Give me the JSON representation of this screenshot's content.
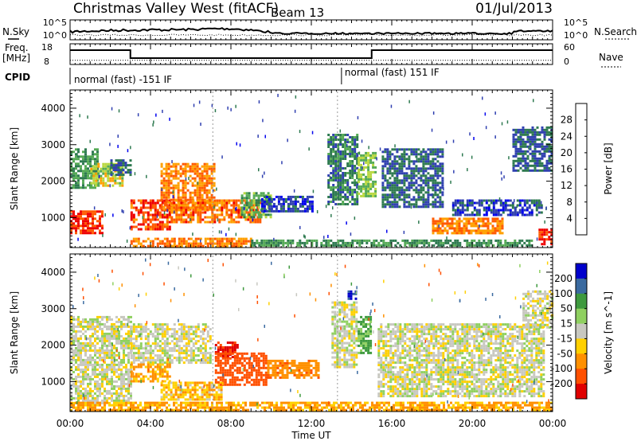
{
  "header": {
    "station": "Christmas Valley West (fitACF)",
    "beam": "Beam 13",
    "date": "01/Jul/2013"
  },
  "side_labels": {
    "nsky": "N.Sky",
    "nsearch": "N.Search",
    "freq_line1": "Freq.",
    "freq_line2": "[MHz]",
    "nave": "Nave",
    "cpid": "CPID"
  },
  "cpid_modes": [
    {
      "label": "normal (fast) -151 IF",
      "start_h": 0
    },
    {
      "label": "normal (fast) 151 IF",
      "start_h": 13.5
    }
  ],
  "noise_panel": {
    "left_ticks": [
      "10^5",
      "10^0"
    ],
    "right_ticks": [
      "10^5",
      "10^0"
    ]
  },
  "freq_panel": {
    "left_ticks": [
      "18",
      "8"
    ],
    "right_ticks": [
      "60",
      "0"
    ],
    "freq_steps": [
      {
        "start_h": 0,
        "end_h": 3.0,
        "mhz": 15
      },
      {
        "start_h": 3.0,
        "end_h": 15.0,
        "mhz": 10
      },
      {
        "start_h": 15.0,
        "end_h": 24,
        "mhz": 15
      }
    ],
    "nave_level": 12
  },
  "time_axis": {
    "label": "Time UT",
    "ticks": [
      "00:00",
      "04:00",
      "08:00",
      "12:00",
      "16:00",
      "20:00",
      "00:00"
    ],
    "range_h": [
      0,
      24
    ]
  },
  "range_axis": {
    "label": "Slant Range [km]",
    "ticks": [
      1000,
      2000,
      3000,
      4000
    ],
    "range_km": [
      180,
      4500
    ]
  },
  "power_scale": {
    "label": "Power [dB]",
    "ticks": [
      "4",
      "8",
      "12",
      "16",
      "20",
      "24",
      "28"
    ],
    "colors": [
      "#0000ee",
      "#3040b0",
      "#2e7a50",
      "#55aa55",
      "#b8d840",
      "#ffa000",
      "#ff5a00",
      "#ee0000"
    ]
  },
  "velocity_scale": {
    "label": "Velocity [m s^-1]",
    "ticks": [
      "200",
      "100",
      "50",
      "15",
      "-15",
      "-50",
      "-100",
      "-200"
    ],
    "colors": [
      "#0000cc",
      "#3a6aa0",
      "#3e9a3e",
      "#8fd060",
      "#c8c8c0",
      "#ffd000",
      "#ff9000",
      "#ff5000",
      "#e00000"
    ]
  },
  "chart_data": {
    "type": "heatmap",
    "title": "Christmas Valley West (fitACF) Beam 13 01/Jul/2013",
    "xlabel": "Time UT",
    "ylabel": "Slant Range [km]",
    "xlim_hours": [
      0,
      24
    ],
    "ylim_km": [
      180,
      4500
    ],
    "power_regions": [
      {
        "t0": 0.0,
        "t1": 1.6,
        "r0": 600,
        "r1": 1200,
        "db": 28
      },
      {
        "t0": 0.0,
        "t1": 1.4,
        "r0": 1800,
        "r1": 2900,
        "db": 12
      },
      {
        "t0": 1.0,
        "t1": 2.6,
        "r0": 1900,
        "r1": 2500,
        "db": 18
      },
      {
        "t0": 2.0,
        "t1": 3.0,
        "r0": 2200,
        "r1": 2600,
        "db": 8
      },
      {
        "t0": 3.0,
        "t1": 5.0,
        "r0": 700,
        "r1": 1500,
        "db": 27
      },
      {
        "t0": 4.5,
        "t1": 7.2,
        "r0": 1200,
        "r1": 2500,
        "db": 24
      },
      {
        "t0": 5.0,
        "t1": 9.5,
        "r0": 900,
        "r1": 1500,
        "db": 25
      },
      {
        "t0": 3.0,
        "t1": 9.0,
        "r0": 230,
        "r1": 450,
        "db": 24
      },
      {
        "t0": 8.5,
        "t1": 10.0,
        "r0": 1000,
        "r1": 1700,
        "db": 14
      },
      {
        "t0": 9.5,
        "t1": 12.0,
        "r0": 1200,
        "r1": 1600,
        "db": 6
      },
      {
        "t0": 12.8,
        "t1": 14.3,
        "r0": 1400,
        "r1": 3300,
        "db": 10
      },
      {
        "t0": 14.3,
        "t1": 15.2,
        "r0": 1600,
        "r1": 2800,
        "db": 16
      },
      {
        "t0": 15.5,
        "t1": 18.5,
        "r0": 1300,
        "r1": 2900,
        "db": 8
      },
      {
        "t0": 18.0,
        "t1": 21.5,
        "r0": 600,
        "r1": 1000,
        "db": 24
      },
      {
        "t0": 19.0,
        "t1": 23.5,
        "r0": 1100,
        "r1": 1500,
        "db": 6
      },
      {
        "t0": 22.0,
        "t1": 24.0,
        "r0": 2300,
        "r1": 3500,
        "db": 8
      },
      {
        "t0": 23.3,
        "t1": 24.0,
        "r0": 250,
        "r1": 700,
        "db": 28
      },
      {
        "t0": 9.0,
        "t1": 23.0,
        "r0": 220,
        "r1": 400,
        "db": 12
      }
    ],
    "velocity_regions": [
      {
        "t0": 0.0,
        "t1": 3.0,
        "r0": 400,
        "r1": 2800,
        "v": 0
      },
      {
        "t0": 3.0,
        "t1": 7.0,
        "r0": 1500,
        "r1": 2600,
        "v": 0
      },
      {
        "t0": 3.0,
        "t1": 5.0,
        "r0": 1000,
        "r1": 1500,
        "v": -60
      },
      {
        "t0": 4.5,
        "t1": 7.5,
        "r0": 500,
        "r1": 1000,
        "v": -40
      },
      {
        "t0": 7.2,
        "t1": 8.3,
        "r0": 1700,
        "r1": 2100,
        "v": -220
      },
      {
        "t0": 7.2,
        "t1": 9.8,
        "r0": 900,
        "r1": 1800,
        "v": -150
      },
      {
        "t0": 9.8,
        "t1": 12.3,
        "r0": 1100,
        "r1": 1600,
        "v": -80
      },
      {
        "t0": 13.0,
        "t1": 14.3,
        "r0": 1400,
        "r1": 3200,
        "v": 0
      },
      {
        "t0": 13.8,
        "t1": 14.2,
        "r0": 3300,
        "r1": 3500,
        "v": 220
      },
      {
        "t0": 14.3,
        "t1": 15.0,
        "r0": 1800,
        "r1": 2800,
        "v": 60
      },
      {
        "t0": 15.3,
        "t1": 23.5,
        "r0": 600,
        "r1": 2600,
        "v": 0
      },
      {
        "t0": 22.5,
        "t1": 24.0,
        "r0": 2500,
        "r1": 3500,
        "v": 0
      },
      {
        "t0": 0.0,
        "t1": 24.0,
        "r0": 200,
        "r1": 450,
        "v": -60
      }
    ]
  }
}
